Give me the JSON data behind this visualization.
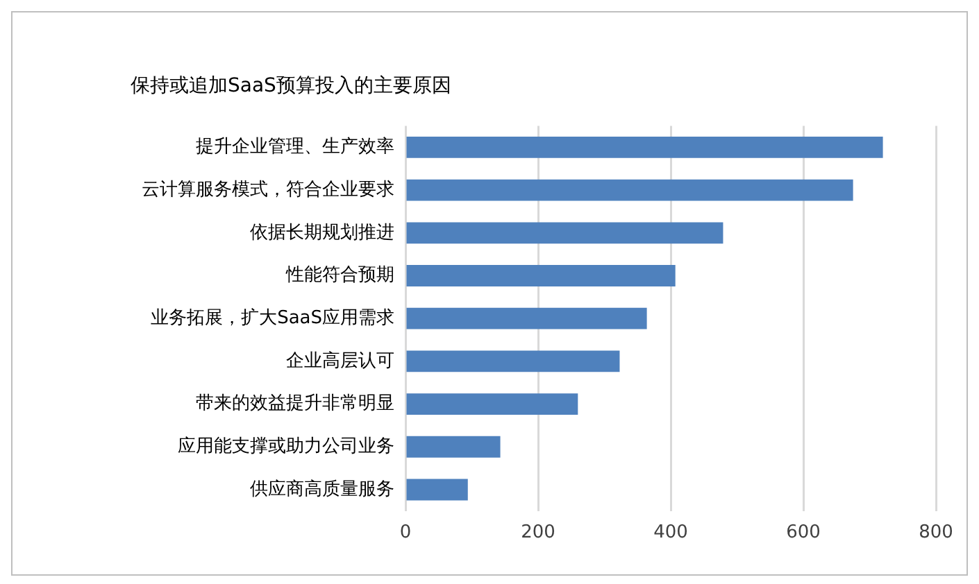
{
  "chart_data": {
    "type": "bar",
    "orientation": "horizontal",
    "title": "保持或追加SaaS预算投入的主要原因",
    "categories": [
      "提升企业管理、生产效率",
      "云计算服务模式，符合企业要求",
      "依据长期规划推进",
      "性能符合预期",
      "业务拓展，扩大SaaS应用需求",
      "企业高层认可",
      "带来的效益提升非常明显",
      "应用能支撑或助力公司业务",
      "供应商高质量服务"
    ],
    "values": [
      720,
      675,
      479,
      407,
      364,
      323,
      260,
      143,
      94
    ],
    "color": "#4f81bd",
    "xlim": [
      0,
      800
    ],
    "xticks": [
      0,
      200,
      400,
      600,
      800
    ],
    "grid": "x"
  }
}
